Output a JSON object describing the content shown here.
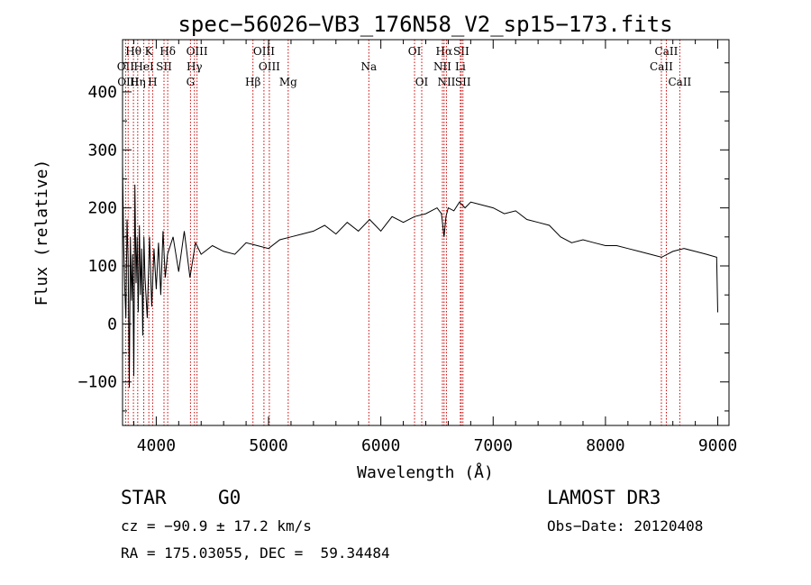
{
  "chart_data": {
    "type": "line",
    "title": "spec−56026−VB3_176N58_V2_sp15−173.fits",
    "xlabel": "Wavelength (Å)",
    "ylabel": "Flux (relative)",
    "xlim": [
      3700,
      9100
    ],
    "ylim": [
      -175,
      490
    ],
    "x_ticks": [
      4000,
      5000,
      6000,
      7000,
      8000,
      9000
    ],
    "x_tick_labels": [
      "4000",
      "5000",
      "6000",
      "7000",
      "8000",
      "9000"
    ],
    "y_ticks": [
      -100,
      0,
      100,
      200,
      300,
      400
    ],
    "y_tick_labels": [
      "−100",
      "0",
      "100",
      "200",
      "300",
      "400"
    ],
    "series": [
      {
        "name": "flux",
        "color": "#000000",
        "x": [
          3700,
          3710,
          3720,
          3730,
          3740,
          3750,
          3760,
          3770,
          3780,
          3790,
          3800,
          3810,
          3820,
          3830,
          3840,
          3850,
          3860,
          3870,
          3880,
          3890,
          3900,
          3920,
          3940,
          3960,
          3980,
          4000,
          4020,
          4040,
          4060,
          4080,
          4100,
          4150,
          4200,
          4250,
          4300,
          4350,
          4400,
          4500,
          4600,
          4700,
          4800,
          4900,
          5000,
          5100,
          5200,
          5300,
          5400,
          5500,
          5600,
          5700,
          5800,
          5900,
          6000,
          6100,
          6200,
          6300,
          6400,
          6500,
          6540,
          6563,
          6580,
          6600,
          6650,
          6700,
          6750,
          6800,
          6900,
          7000,
          7100,
          7200,
          7300,
          7400,
          7500,
          7600,
          7700,
          7800,
          7900,
          8000,
          8100,
          8200,
          8300,
          8400,
          8500,
          8600,
          8700,
          8800,
          8900,
          8990,
          9000
        ],
        "y": [
          275,
          140,
          60,
          10,
          180,
          110,
          -110,
          150,
          40,
          120,
          -90,
          240,
          70,
          150,
          20,
          170,
          50,
          130,
          -20,
          150,
          80,
          10,
          150,
          30,
          130,
          60,
          140,
          50,
          160,
          80,
          120,
          150,
          90,
          160,
          80,
          140,
          120,
          135,
          125,
          120,
          140,
          135,
          130,
          145,
          150,
          155,
          160,
          170,
          155,
          175,
          160,
          180,
          160,
          185,
          175,
          185,
          190,
          200,
          190,
          150,
          185,
          200,
          195,
          210,
          200,
          210,
          205,
          200,
          190,
          195,
          180,
          175,
          170,
          150,
          140,
          145,
          140,
          135,
          135,
          130,
          125,
          120,
          115,
          125,
          130,
          125,
          120,
          115,
          20
        ]
      }
    ],
    "spectral_lines": [
      {
        "label": "Hθ",
        "x": 3797,
        "row": 0
      },
      {
        "label": "K",
        "x": 3934,
        "row": 0
      },
      {
        "label": "Hδ",
        "x": 4102,
        "row": 0
      },
      {
        "label": "OIII",
        "x": 4363,
        "row": 0
      },
      {
        "label": "OIII",
        "x": 4959,
        "row": 0
      },
      {
        "label": "OI",
        "x": 6300,
        "row": 0
      },
      {
        "label": "Hα",
        "x": 6563,
        "row": 0
      },
      {
        "label": "SII",
        "x": 6716,
        "row": 0
      },
      {
        "label": "CaII",
        "x": 8542,
        "row": 0
      },
      {
        "label": "OII",
        "x": 3727,
        "row": 1
      },
      {
        "label": "HeI",
        "x": 3889,
        "row": 1
      },
      {
        "label": "SII",
        "x": 4069,
        "row": 1
      },
      {
        "label": "Hγ",
        "x": 4340,
        "row": 1
      },
      {
        "label": "OIII",
        "x": 5007,
        "row": 1
      },
      {
        "label": "Na",
        "x": 5893,
        "row": 1
      },
      {
        "label": "NII",
        "x": 6548,
        "row": 1
      },
      {
        "label": "Li",
        "x": 6708,
        "row": 1
      },
      {
        "label": "CaII",
        "x": 8498,
        "row": 1
      },
      {
        "label": "OIII",
        "x": 3750,
        "row": 2
      },
      {
        "label": "Hη",
        "x": 3835,
        "row": 2
      },
      {
        "label": "H",
        "x": 3968,
        "row": 2
      },
      {
        "label": "G",
        "x": 4305,
        "row": 2
      },
      {
        "label": "Hβ",
        "x": 4861,
        "row": 2
      },
      {
        "label": "Mg",
        "x": 5175,
        "row": 2
      },
      {
        "label": "OI",
        "x": 6364,
        "row": 2
      },
      {
        "label": "NII",
        "x": 6584,
        "row": 2
      },
      {
        "label": "SII",
        "x": 6731,
        "row": 2
      },
      {
        "label": "CaII",
        "x": 8662,
        "row": 2
      }
    ],
    "line_color": "#cc0000"
  },
  "info": {
    "object_class": "STAR",
    "subclass": "G0",
    "survey": "LAMOST DR3",
    "redshift": "cz = −90.9 ± 17.2 km/s",
    "obs_date": "Obs−Date: 20120408",
    "coords": "RA = 175.03055, DEC =  59.34484"
  }
}
